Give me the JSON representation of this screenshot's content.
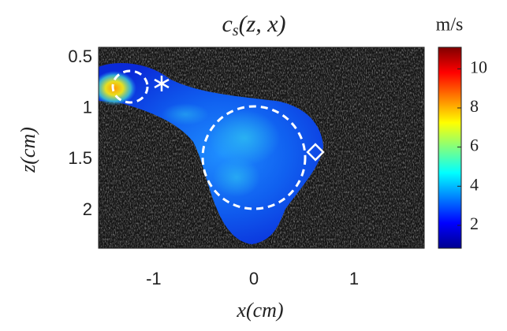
{
  "chart_data": {
    "type": "heatmap",
    "title": {
      "base": "c",
      "subscript": "s",
      "rest": "(z, x)"
    },
    "xlabel": "x(cm)",
    "ylabel": "z(cm)",
    "xlim": [
      -1.55,
      1.7
    ],
    "xticks": [
      -1,
      0,
      1
    ],
    "ylim": [
      0.4,
      2.37
    ],
    "yticks": [
      0.5,
      1,
      1.5,
      2
    ],
    "y_reversed": true,
    "colorbar": {
      "label": "m/s",
      "colormap": "jet",
      "clim": [
        0.83,
        11.1
      ],
      "ticks": [
        2,
        4,
        6,
        8,
        10
      ]
    }
  }
}
